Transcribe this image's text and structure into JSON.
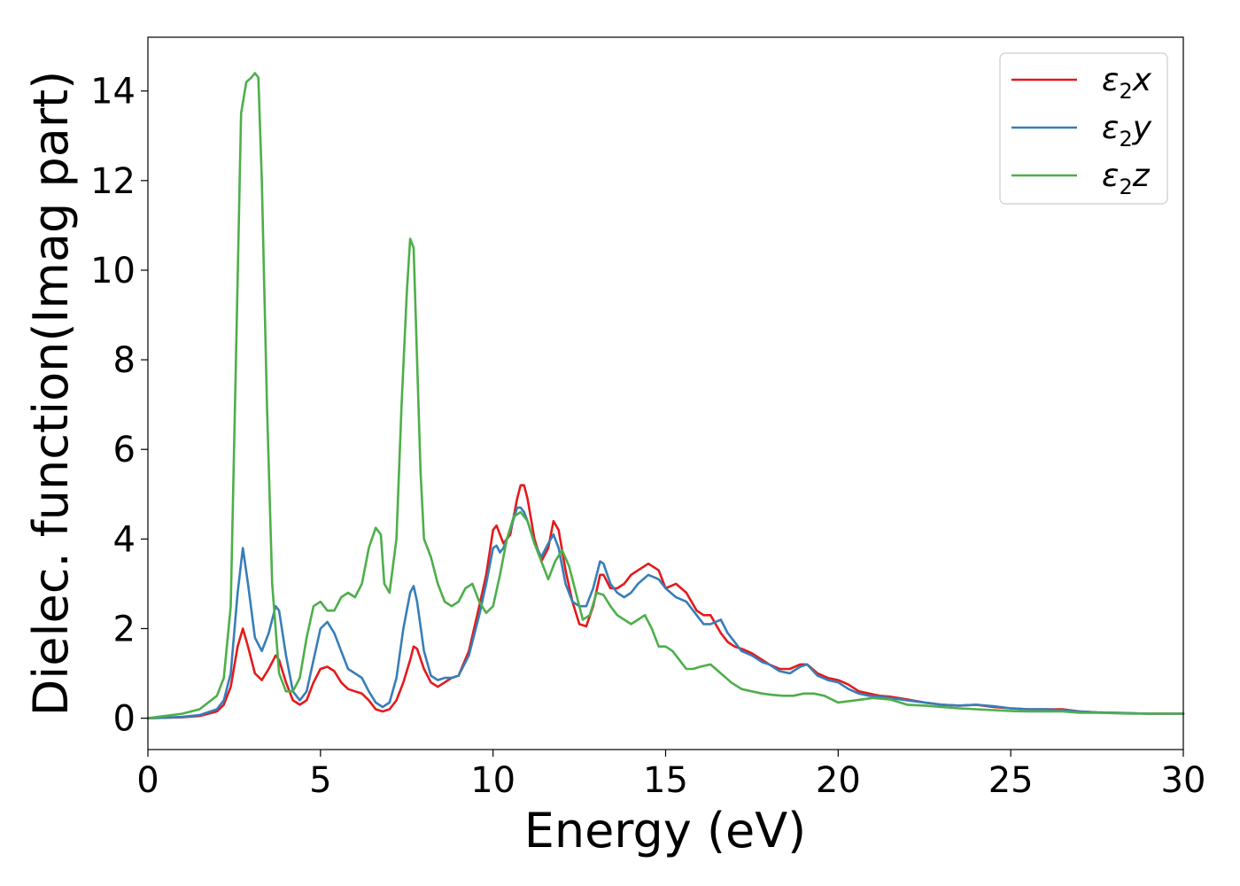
{
  "chart_data": {
    "type": "line",
    "title": "",
    "xlabel": "Energy (eV)",
    "ylabel": "Dielec. function(Imag part)",
    "xlim": [
      0,
      30
    ],
    "ylim": [
      -0.7,
      15.2
    ],
    "xticks": [
      0,
      5,
      10,
      15,
      20,
      25,
      30
    ],
    "yticks": [
      0,
      2,
      4,
      6,
      8,
      10,
      12,
      14
    ],
    "grid": false,
    "legend_position": "top-right",
    "series": [
      {
        "name": "ε₂x",
        "legend_main": "ε",
        "legend_sub": "2",
        "legend_suffix": "x",
        "color": "#e41a1c",
        "x": [
          0,
          0.5,
          1,
          1.5,
          2,
          2.2,
          2.4,
          2.6,
          2.75,
          2.9,
          3.1,
          3.3,
          3.5,
          3.7,
          3.8,
          4.0,
          4.2,
          4.4,
          4.6,
          4.8,
          5.0,
          5.2,
          5.4,
          5.6,
          5.8,
          6.0,
          6.2,
          6.4,
          6.6,
          6.8,
          7.0,
          7.2,
          7.4,
          7.6,
          7.7,
          7.8,
          8.0,
          8.2,
          8.4,
          8.6,
          8.8,
          9.0,
          9.3,
          9.6,
          9.8,
          10.0,
          10.1,
          10.2,
          10.3,
          10.5,
          10.7,
          10.8,
          10.9,
          11.0,
          11.2,
          11.4,
          11.6,
          11.75,
          11.9,
          12.1,
          12.3,
          12.5,
          12.7,
          12.9,
          13.1,
          13.2,
          13.4,
          13.6,
          13.8,
          14.0,
          14.2,
          14.5,
          14.8,
          15.0,
          15.3,
          15.6,
          15.9,
          16.1,
          16.3,
          16.6,
          16.8,
          17.0,
          17.2,
          17.5,
          17.8,
          18.0,
          18.3,
          18.6,
          18.9,
          19.1,
          19.4,
          19.7,
          20.0,
          20.3,
          20.6,
          20.9,
          21.2,
          21.5,
          22.0,
          22.5,
          23.0,
          23.5,
          24.0,
          24.5,
          25.0,
          25.5,
          26.0,
          26.5,
          27.0,
          27.5,
          28.0,
          28.5,
          29.0,
          29.5,
          30.0
        ],
        "y": [
          0.0,
          0.01,
          0.02,
          0.05,
          0.15,
          0.3,
          0.7,
          1.6,
          2.0,
          1.6,
          1.0,
          0.85,
          1.1,
          1.4,
          1.3,
          0.8,
          0.4,
          0.3,
          0.4,
          0.8,
          1.1,
          1.15,
          1.05,
          0.8,
          0.65,
          0.6,
          0.55,
          0.4,
          0.2,
          0.15,
          0.2,
          0.4,
          0.8,
          1.3,
          1.6,
          1.55,
          1.1,
          0.8,
          0.7,
          0.8,
          0.9,
          0.95,
          1.5,
          2.5,
          3.2,
          4.2,
          4.3,
          4.1,
          3.9,
          4.1,
          4.9,
          5.2,
          5.2,
          4.9,
          4.0,
          3.5,
          3.8,
          4.4,
          4.2,
          3.3,
          2.6,
          2.1,
          2.05,
          2.5,
          3.2,
          3.2,
          2.9,
          2.9,
          3.0,
          3.2,
          3.3,
          3.45,
          3.3,
          2.9,
          3.0,
          2.8,
          2.4,
          2.3,
          2.3,
          1.9,
          1.7,
          1.6,
          1.55,
          1.45,
          1.3,
          1.2,
          1.1,
          1.1,
          1.2,
          1.2,
          1.0,
          0.9,
          0.85,
          0.75,
          0.6,
          0.55,
          0.5,
          0.48,
          0.42,
          0.35,
          0.3,
          0.28,
          0.3,
          0.25,
          0.22,
          0.2,
          0.2,
          0.2,
          0.15,
          0.13,
          0.12,
          0.11,
          0.1,
          0.1,
          0.1
        ]
      },
      {
        "name": "ε₂y",
        "legend_main": "ε",
        "legend_sub": "2",
        "legend_suffix": "y",
        "color": "#377eb8",
        "x": [
          0,
          0.5,
          1,
          1.5,
          2,
          2.2,
          2.4,
          2.6,
          2.75,
          2.9,
          3.1,
          3.3,
          3.5,
          3.7,
          3.8,
          4.0,
          4.2,
          4.4,
          4.6,
          4.8,
          5.0,
          5.2,
          5.4,
          5.6,
          5.8,
          6.0,
          6.2,
          6.4,
          6.6,
          6.8,
          7.0,
          7.2,
          7.4,
          7.6,
          7.7,
          7.8,
          8.0,
          8.2,
          8.4,
          8.6,
          8.8,
          9.0,
          9.3,
          9.6,
          9.8,
          10.0,
          10.1,
          10.2,
          10.3,
          10.5,
          10.7,
          10.8,
          10.9,
          11.0,
          11.2,
          11.4,
          11.6,
          11.75,
          11.9,
          12.1,
          12.3,
          12.5,
          12.7,
          12.9,
          13.1,
          13.2,
          13.4,
          13.6,
          13.8,
          14.0,
          14.2,
          14.5,
          14.8,
          15.0,
          15.3,
          15.6,
          15.9,
          16.1,
          16.3,
          16.6,
          16.8,
          17.0,
          17.2,
          17.5,
          17.8,
          18.0,
          18.3,
          18.6,
          18.9,
          19.1,
          19.4,
          19.7,
          20.0,
          20.3,
          20.6,
          20.9,
          21.2,
          21.5,
          22.0,
          22.5,
          23.0,
          23.5,
          24.0,
          24.5,
          25.0,
          25.5,
          26.0,
          26.5,
          27.0,
          27.5,
          28.0,
          28.5,
          29.0,
          29.5,
          30.0
        ],
        "y": [
          0.0,
          0.01,
          0.03,
          0.07,
          0.2,
          0.4,
          1.0,
          2.8,
          3.8,
          3.0,
          1.8,
          1.5,
          1.9,
          2.5,
          2.4,
          1.4,
          0.6,
          0.4,
          0.6,
          1.3,
          2.0,
          2.15,
          1.9,
          1.5,
          1.1,
          1.0,
          0.9,
          0.6,
          0.35,
          0.25,
          0.35,
          0.9,
          2.0,
          2.8,
          2.95,
          2.6,
          1.5,
          0.95,
          0.85,
          0.9,
          0.9,
          0.95,
          1.4,
          2.3,
          3.0,
          3.8,
          3.85,
          3.7,
          3.8,
          4.2,
          4.7,
          4.7,
          4.6,
          4.4,
          3.9,
          3.6,
          3.9,
          4.1,
          3.8,
          3.0,
          2.6,
          2.5,
          2.5,
          2.9,
          3.5,
          3.45,
          3.0,
          2.8,
          2.7,
          2.8,
          3.0,
          3.2,
          3.1,
          2.9,
          2.7,
          2.6,
          2.3,
          2.1,
          2.1,
          2.2,
          1.9,
          1.7,
          1.5,
          1.4,
          1.25,
          1.2,
          1.05,
          1.0,
          1.15,
          1.2,
          0.95,
          0.85,
          0.8,
          0.65,
          0.55,
          0.5,
          0.48,
          0.45,
          0.4,
          0.35,
          0.3,
          0.28,
          0.3,
          0.27,
          0.22,
          0.2,
          0.2,
          0.18,
          0.15,
          0.13,
          0.12,
          0.11,
          0.1,
          0.1,
          0.1
        ]
      },
      {
        "name": "ε₂z",
        "legend_main": "ε",
        "legend_sub": "2",
        "legend_suffix": "z",
        "color": "#4daf4a",
        "x": [
          0,
          0.5,
          1,
          1.5,
          2,
          2.2,
          2.4,
          2.55,
          2.7,
          2.85,
          3.0,
          3.1,
          3.2,
          3.3,
          3.45,
          3.6,
          3.8,
          4.0,
          4.2,
          4.4,
          4.6,
          4.8,
          5.0,
          5.2,
          5.4,
          5.6,
          5.8,
          6.0,
          6.2,
          6.4,
          6.6,
          6.75,
          6.85,
          7.0,
          7.2,
          7.35,
          7.5,
          7.6,
          7.7,
          7.8,
          7.9,
          8.0,
          8.2,
          8.4,
          8.6,
          8.8,
          9.0,
          9.2,
          9.4,
          9.6,
          9.8,
          10.0,
          10.2,
          10.4,
          10.6,
          10.8,
          11.0,
          11.2,
          11.4,
          11.6,
          11.8,
          12.0,
          12.2,
          12.4,
          12.6,
          12.8,
          13.0,
          13.2,
          13.4,
          13.6,
          13.8,
          14.0,
          14.2,
          14.4,
          14.6,
          14.8,
          15.0,
          15.2,
          15.4,
          15.6,
          15.8,
          16.0,
          16.3,
          16.6,
          16.9,
          17.2,
          17.5,
          17.8,
          18.1,
          18.4,
          18.7,
          19.0,
          19.3,
          19.6,
          20.0,
          20.5,
          21.0,
          21.5,
          22.0,
          22.5,
          23.0,
          23.5,
          24.0,
          24.5,
          25.0,
          25.5,
          26.0,
          26.5,
          27.0,
          27.5,
          28.0,
          28.5,
          29.0,
          29.5,
          30.0
        ],
        "y": [
          0.0,
          0.05,
          0.1,
          0.2,
          0.5,
          0.9,
          2.5,
          8.0,
          13.5,
          14.2,
          14.3,
          14.4,
          14.3,
          12.0,
          7.0,
          3.0,
          1.0,
          0.6,
          0.6,
          0.9,
          1.8,
          2.5,
          2.6,
          2.4,
          2.4,
          2.7,
          2.8,
          2.7,
          3.0,
          3.8,
          4.25,
          4.1,
          3.0,
          2.8,
          4.0,
          7.0,
          9.5,
          10.7,
          10.5,
          8.0,
          5.5,
          4.0,
          3.6,
          3.0,
          2.6,
          2.5,
          2.6,
          2.9,
          3.0,
          2.6,
          2.35,
          2.5,
          3.2,
          4.0,
          4.5,
          4.6,
          4.4,
          3.9,
          3.5,
          3.1,
          3.5,
          3.75,
          3.4,
          2.8,
          2.2,
          2.3,
          2.8,
          2.75,
          2.5,
          2.3,
          2.2,
          2.1,
          2.2,
          2.3,
          2.0,
          1.6,
          1.6,
          1.5,
          1.3,
          1.1,
          1.1,
          1.15,
          1.2,
          1.0,
          0.8,
          0.65,
          0.6,
          0.55,
          0.52,
          0.5,
          0.5,
          0.55,
          0.55,
          0.5,
          0.35,
          0.4,
          0.45,
          0.42,
          0.3,
          0.28,
          0.25,
          0.22,
          0.2,
          0.18,
          0.16,
          0.15,
          0.15,
          0.15,
          0.12,
          0.12,
          0.11,
          0.1,
          0.1,
          0.1,
          0.1
        ]
      }
    ]
  }
}
